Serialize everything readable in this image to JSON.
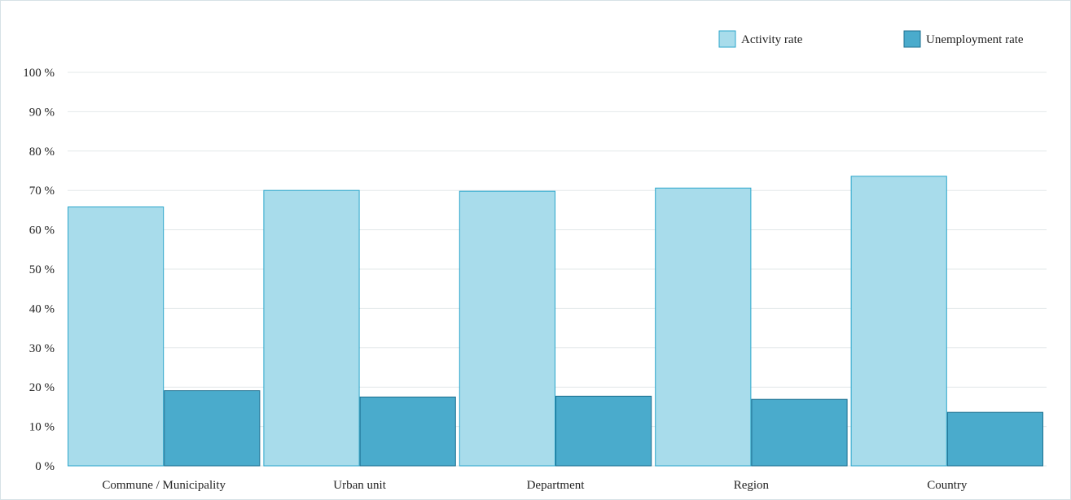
{
  "chart_data": {
    "type": "bar",
    "categories": [
      "Commune / Municipality",
      "Urban unit",
      "Department",
      "Region",
      "Country"
    ],
    "series": [
      {
        "name": "Activity rate",
        "values": [
          65.8,
          70.0,
          69.8,
          70.6,
          73.6
        ],
        "fill": "#a8dceb",
        "stroke": "#2ba6cb"
      },
      {
        "name": "Unemployment rate",
        "values": [
          19.1,
          17.5,
          17.7,
          16.9,
          13.6
        ],
        "fill": "#4aabcc",
        "stroke": "#1d6f8f"
      }
    ],
    "yticks": [
      "0 %",
      "10 %",
      "20 %",
      "30 %",
      "40 %",
      "50 %",
      "60 %",
      "70 %",
      "80 %",
      "90 %",
      "100 %"
    ],
    "ylim": [
      0,
      100
    ],
    "grid": true,
    "legend_position": "top-right",
    "title": "",
    "xlabel": "",
    "ylabel": ""
  }
}
